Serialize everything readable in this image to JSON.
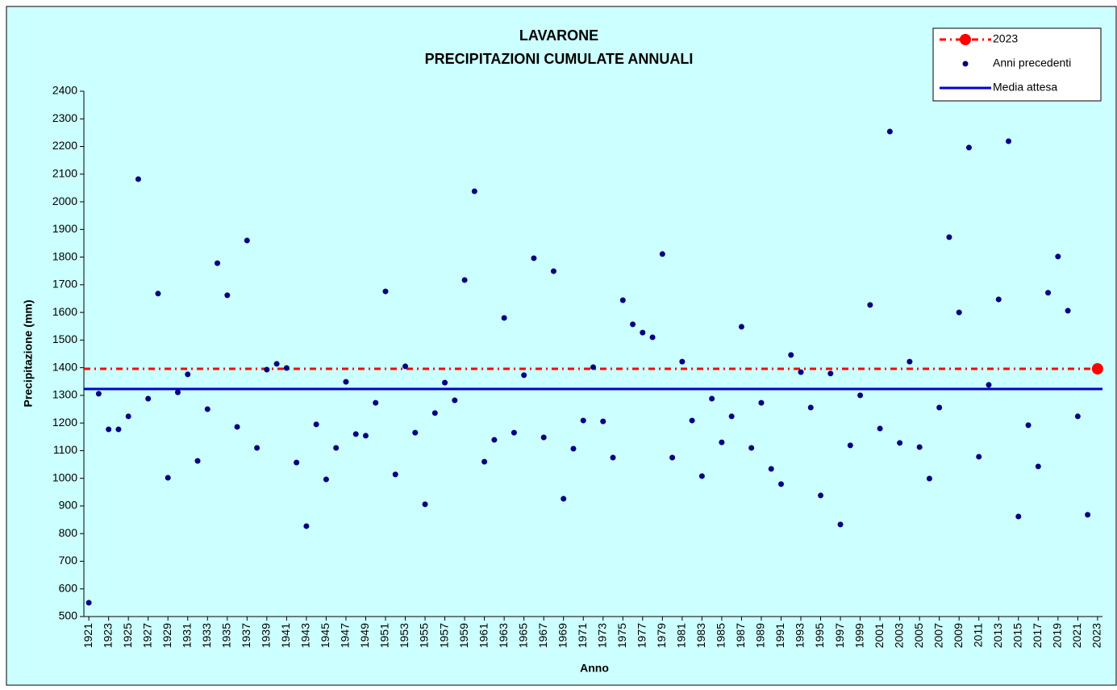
{
  "chart_data": {
    "type": "scatter",
    "title": "LAVARONE",
    "subtitle": "PRECIPITAZIONI CUMULATE ANNUALI",
    "x_label": "Anno",
    "y_label": "Precipitazione (mm)",
    "xlim": [
      1920.5,
      2023.5
    ],
    "xticks": [
      1921,
      1923,
      1925,
      1927,
      1929,
      1931,
      1933,
      1935,
      1937,
      1939,
      1941,
      1943,
      1945,
      1947,
      1949,
      1951,
      1953,
      1955,
      1957,
      1959,
      1961,
      1963,
      1965,
      1967,
      1969,
      1971,
      1973,
      1975,
      1977,
      1979,
      1981,
      1983,
      1985,
      1987,
      1989,
      1991,
      1993,
      1995,
      1997,
      1999,
      2001,
      2003,
      2005,
      2007,
      2009,
      2011,
      2013,
      2015,
      2017,
      2019,
      2021,
      2023
    ],
    "ylim": [
      500,
      2400
    ],
    "yticks": [
      500,
      600,
      700,
      800,
      900,
      1000,
      1100,
      1200,
      1300,
      1400,
      1500,
      1600,
      1700,
      1800,
      1900,
      2000,
      2100,
      2200,
      2300,
      2400
    ],
    "grid": false,
    "legend": "top-right",
    "series": [
      {
        "name": "2023",
        "color": "#ff0000",
        "style": "dashed-hline-dot",
        "x": [
          2023
        ],
        "values": [
          1396
        ]
      },
      {
        "name": "Anni precedenti",
        "color": "#000080",
        "style": "dot",
        "x": [
          1921,
          1922,
          1923,
          1924,
          1925,
          1926,
          1927,
          1928,
          1929,
          1930,
          1931,
          1932,
          1933,
          1934,
          1935,
          1936,
          1937,
          1938,
          1939,
          1940,
          1941,
          1942,
          1943,
          1944,
          1945,
          1946,
          1947,
          1948,
          1949,
          1950,
          1951,
          1952,
          1953,
          1954,
          1955,
          1956,
          1957,
          1958,
          1959,
          1960,
          1961,
          1962,
          1963,
          1964,
          1965,
          1966,
          1967,
          1968,
          1969,
          1970,
          1971,
          1972,
          1973,
          1974,
          1975,
          1976,
          1977,
          1978,
          1979,
          1980,
          1981,
          1982,
          1983,
          1984,
          1985,
          1986,
          1987,
          1988,
          1989,
          1990,
          1991,
          1992,
          1993,
          1994,
          1995,
          1996,
          1997,
          1998,
          1999,
          2000,
          2001,
          2002,
          2003,
          2004,
          2005,
          2006,
          2007,
          2008,
          2009,
          2010,
          2011,
          2012,
          2013,
          2014,
          2015,
          2016,
          2017,
          2018,
          2019,
          2020,
          2021,
          2022
        ],
        "values": [
          550,
          1306,
          1177,
          1177,
          1224,
          2082,
          1288,
          1668,
          1002,
          1311,
          1376,
          1063,
          1250,
          1778,
          1662,
          1186,
          1860,
          1110,
          1393,
          1414,
          1399,
          1057,
          827,
          1195,
          996,
          1110,
          1349,
          1160,
          1154,
          1273,
          1676,
          1014,
          1405,
          1165,
          906,
          1236,
          1346,
          1282,
          1717,
          2038,
          1060,
          1139,
          1580,
          1165,
          1373,
          1796,
          1148,
          1749,
          926,
          1107,
          1209,
          1402,
          1206,
          1075,
          1644,
          1557,
          1527,
          1510,
          1811,
          1075,
          1422,
          1209,
          1008,
          1288,
          1130,
          1224,
          1548,
          1110,
          1273,
          1034,
          979,
          1446,
          1384,
          1256,
          938,
          1379,
          833,
          1119,
          1300,
          1627,
          1180,
          2254,
          1128,
          1422,
          1113,
          999,
          1256,
          1872,
          1600,
          2196,
          1078,
          1338,
          1647,
          2219,
          862,
          1192,
          1043,
          1671,
          1802,
          1606,
          1224,
          868
        ]
      },
      {
        "name": "Media attesa",
        "color": "#0000cc",
        "style": "hline",
        "values": [
          1323
        ]
      }
    ]
  }
}
